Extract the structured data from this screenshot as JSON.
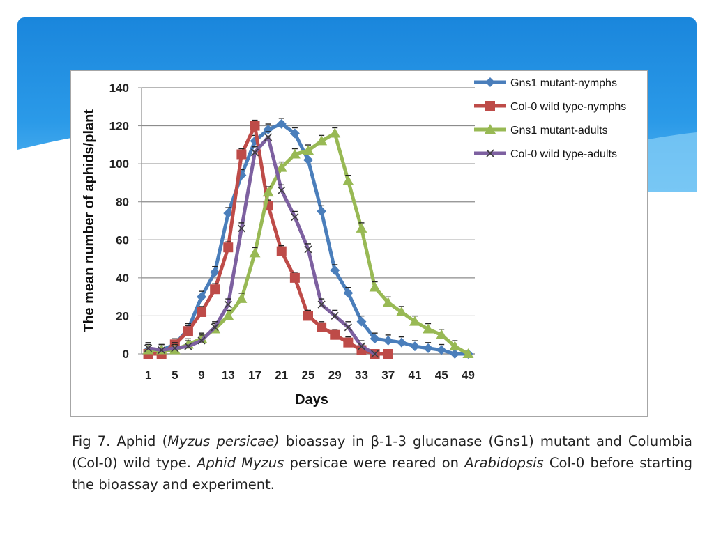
{
  "slide": {
    "banner_color": "#1f8be0",
    "caption": {
      "part1": "Fig 7. Aphid (",
      "species": "Myzus persicae)",
      "part2": " bioassay in β-1-3 glucanase (Gns1) mutant and Columbia (Col-0) wild type. ",
      "italic1": "Aphid Myzus",
      "part3": " persicae were reared on ",
      "italic2": "Arabidopsis",
      "part4": " Col-0 before starting the bioassay and experiment."
    }
  },
  "chart_data": {
    "type": "line",
    "title": "",
    "xlabel": "Days",
    "ylabel": "The mean number of aphids/plant",
    "ylim": [
      0,
      140
    ],
    "yticks": [
      0,
      20,
      40,
      60,
      80,
      100,
      120,
      140
    ],
    "xticks": [
      1,
      5,
      9,
      13,
      17,
      21,
      25,
      29,
      33,
      37,
      41,
      45,
      49
    ],
    "xlim": [
      0,
      50
    ],
    "grid": "horizontal",
    "legend_position": "top-right",
    "series": [
      {
        "name": "Gns1 mutant-nymphs",
        "color": "#4a7ebb",
        "marker": "diamond",
        "x": [
          1,
          3,
          5,
          7,
          9,
          11,
          13,
          15,
          17,
          19,
          21,
          23,
          25,
          27,
          29,
          31,
          33,
          35,
          37,
          39,
          41,
          43,
          45,
          47,
          49
        ],
        "y": [
          2,
          2,
          5,
          13,
          30,
          43,
          74,
          94,
          112,
          118,
          121,
          116,
          102,
          75,
          44,
          32,
          17,
          8,
          7,
          6,
          4,
          3,
          2,
          0,
          0
        ]
      },
      {
        "name": "Col-0 wild type-nymphs",
        "color": "#be4b48",
        "marker": "square",
        "x": [
          1,
          3,
          5,
          7,
          9,
          11,
          13,
          15,
          17,
          19,
          21,
          23,
          25,
          27,
          29,
          31,
          33,
          35,
          37
        ],
        "y": [
          0,
          0,
          5,
          12,
          22,
          34,
          56,
          105,
          120,
          78,
          54,
          40,
          20,
          14,
          10,
          6,
          2,
          0,
          0
        ]
      },
      {
        "name": "Gns1 mutant-adults",
        "color": "#98b954",
        "marker": "triangle",
        "x": [
          1,
          3,
          5,
          7,
          9,
          11,
          13,
          15,
          17,
          19,
          21,
          23,
          25,
          27,
          29,
          31,
          33,
          35,
          37,
          39,
          41,
          43,
          45,
          47,
          49
        ],
        "y": [
          2,
          2,
          2,
          5,
          8,
          13,
          20,
          29,
          53,
          85,
          98,
          105,
          107,
          112,
          116,
          91,
          66,
          35,
          27,
          22,
          17,
          13,
          10,
          4,
          0
        ]
      },
      {
        "name": "Col-0 wild type-adults",
        "color": "#7d60a0",
        "marker": "x",
        "x": [
          1,
          3,
          5,
          7,
          9,
          11,
          13,
          15,
          17,
          19,
          21,
          23,
          25,
          27,
          29,
          31,
          33,
          35
        ],
        "y": [
          3,
          2,
          3,
          4,
          7,
          14,
          26,
          66,
          106,
          114,
          86,
          72,
          55,
          26,
          20,
          14,
          4,
          0
        ]
      }
    ]
  }
}
